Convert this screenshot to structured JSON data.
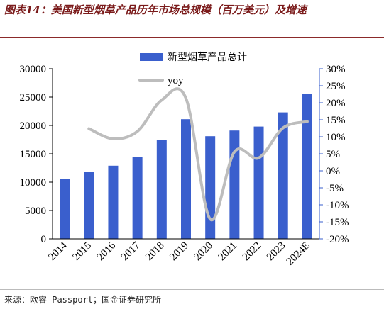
{
  "figure": {
    "title": "图表14：美国新型烟草产品历年市场总规模（百万美元）及增速",
    "source": "来源：欧睿 Passport；国金证券研究所"
  },
  "chart_data": {
    "type": "bar",
    "categories": [
      "2014",
      "2015",
      "2016",
      "2017",
      "2018",
      "2019",
      "2020",
      "2021",
      "2022",
      "2023",
      "2024E"
    ],
    "series": [
      {
        "name": "新型烟草产品总计",
        "type": "bar",
        "axis": "left",
        "color": "#3a5fcd",
        "values": [
          10500,
          11800,
          12900,
          14400,
          17400,
          21100,
          18100,
          19100,
          19800,
          22300,
          25500
        ]
      },
      {
        "name": "yoy",
        "type": "line",
        "axis": "right",
        "color": "#bdbdbd",
        "values": [
          null,
          12.4,
          9.4,
          11.6,
          20.8,
          21.3,
          -14.2,
          5.6,
          3.8,
          12.6,
          14.5
        ]
      }
    ],
    "y_left": {
      "min": 0,
      "max": 30000,
      "ticks": [
        "0",
        "5000",
        "10000",
        "15000",
        "20000",
        "25000",
        "30000"
      ]
    },
    "y_right": {
      "min": -20,
      "max": 30,
      "ticks": [
        "-20%",
        "-15%",
        "-10%",
        "-5%",
        "0%",
        "5%",
        "10%",
        "15%",
        "20%",
        "25%",
        "30%"
      ]
    },
    "grid": false,
    "legend_position": "top"
  }
}
